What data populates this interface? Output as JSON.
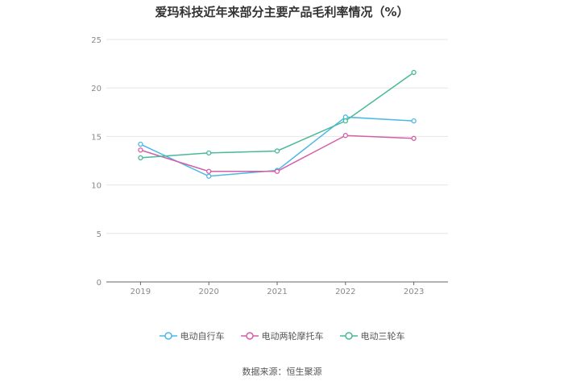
{
  "title": "爱玛科技近年来部分主要产品毛利率情况（%）",
  "source": "数据来源：恒生聚源",
  "chart_data": {
    "type": "line",
    "x": [
      "2019",
      "2020",
      "2021",
      "2022",
      "2023"
    ],
    "ylim": [
      0,
      25
    ],
    "yticks": [
      "0",
      "5",
      "10",
      "15",
      "20",
      "25"
    ],
    "grid": true,
    "legend_position": "bottom",
    "series": [
      {
        "name": "电动自行车",
        "color": "#4bb8e6",
        "values": [
          14.2,
          10.9,
          11.5,
          17.0,
          16.6
        ]
      },
      {
        "name": "电动两轮摩托车",
        "color": "#d45fa8",
        "values": [
          13.6,
          11.4,
          11.4,
          15.1,
          14.8
        ]
      },
      {
        "name": "电动三轮车",
        "color": "#48b99a",
        "values": [
          12.8,
          13.3,
          13.5,
          16.6,
          21.6
        ]
      }
    ]
  }
}
